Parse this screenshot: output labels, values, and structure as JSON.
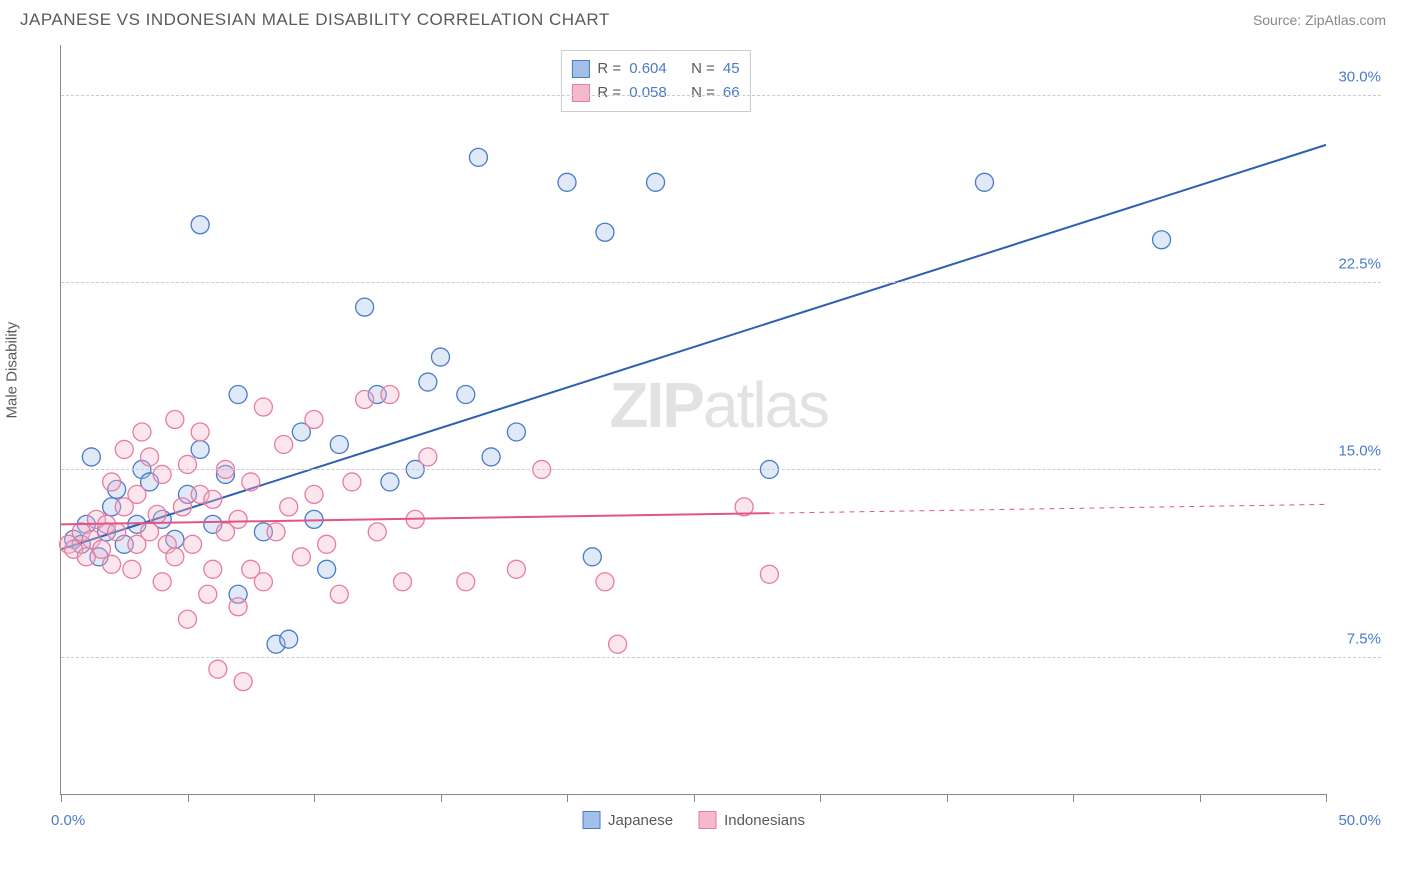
{
  "header": {
    "title": "JAPANESE VS INDONESIAN MALE DISABILITY CORRELATION CHART",
    "source": "Source: ZipAtlas.com"
  },
  "chart": {
    "type": "scatter",
    "y_axis_label": "Male Disability",
    "background_color": "#ffffff",
    "grid_color": "#cccccc",
    "axis_color": "#888888",
    "text_color": "#5a5a5a",
    "value_color": "#4a7bc8",
    "xlim": [
      0,
      50
    ],
    "ylim": [
      2,
      32
    ],
    "x_ticks": [
      0,
      5,
      10,
      15,
      20,
      25,
      30,
      35,
      40,
      45,
      50
    ],
    "x_min_label": "0.0%",
    "x_max_label": "50.0%",
    "y_ticks": [
      7.5,
      15.0,
      22.5,
      30.0
    ],
    "y_tick_labels": [
      "7.5%",
      "15.0%",
      "22.5%",
      "30.0%"
    ],
    "marker_radius": 9,
    "marker_fill_opacity": 0.35,
    "marker_stroke_width": 1.3,
    "line_width": 2,
    "watermark": "ZIPatlas",
    "series": [
      {
        "name": "Japanese",
        "color_stroke": "#4a7bc8",
        "color_fill": "#a3c1e8",
        "line_color": "#2e5fb0",
        "R": "0.604",
        "N": "45",
        "trend": {
          "x1": 0,
          "y1": 11.8,
          "x2": 50,
          "y2": 28.0,
          "solid_until": 50
        },
        "points": [
          [
            0.5,
            12.2
          ],
          [
            0.8,
            12.0
          ],
          [
            1.0,
            12.8
          ],
          [
            1.2,
            15.5
          ],
          [
            1.5,
            11.5
          ],
          [
            1.8,
            12.5
          ],
          [
            2.0,
            13.5
          ],
          [
            2.2,
            14.2
          ],
          [
            2.5,
            12.0
          ],
          [
            3.0,
            12.8
          ],
          [
            3.2,
            15.0
          ],
          [
            3.5,
            14.5
          ],
          [
            4.0,
            13.0
          ],
          [
            4.5,
            12.2
          ],
          [
            5.0,
            14.0
          ],
          [
            5.5,
            15.8
          ],
          [
            5.5,
            24.8
          ],
          [
            6.0,
            12.8
          ],
          [
            6.5,
            14.8
          ],
          [
            7.0,
            18.0
          ],
          [
            7.0,
            10.0
          ],
          [
            8.0,
            12.5
          ],
          [
            8.5,
            8.0
          ],
          [
            9.0,
            8.2
          ],
          [
            9.5,
            16.5
          ],
          [
            10.0,
            13.0
          ],
          [
            10.5,
            11.0
          ],
          [
            11.0,
            16.0
          ],
          [
            12.0,
            21.5
          ],
          [
            12.5,
            18.0
          ],
          [
            13.0,
            14.5
          ],
          [
            14.0,
            15.0
          ],
          [
            14.5,
            18.5
          ],
          [
            15.0,
            19.5
          ],
          [
            16.0,
            18.0
          ],
          [
            16.5,
            27.5
          ],
          [
            17.0,
            15.5
          ],
          [
            18.0,
            16.5
          ],
          [
            20.0,
            26.5
          ],
          [
            21.0,
            11.5
          ],
          [
            21.5,
            24.5
          ],
          [
            23.5,
            26.5
          ],
          [
            28.0,
            15.0
          ],
          [
            36.5,
            26.5
          ],
          [
            43.5,
            24.2
          ]
        ]
      },
      {
        "name": "Indonesians",
        "color_stroke": "#e87ca0",
        "color_fill": "#f5b8cc",
        "line_color": "#e05585",
        "R": "0.058",
        "N": "66",
        "trend": {
          "x1": 0,
          "y1": 12.8,
          "x2": 50,
          "y2": 13.6,
          "solid_until": 28
        },
        "points": [
          [
            0.3,
            12.0
          ],
          [
            0.5,
            11.8
          ],
          [
            0.8,
            12.5
          ],
          [
            1.0,
            11.5
          ],
          [
            1.2,
            12.2
          ],
          [
            1.4,
            13.0
          ],
          [
            1.6,
            11.8
          ],
          [
            1.8,
            12.8
          ],
          [
            2.0,
            11.2
          ],
          [
            2.0,
            14.5
          ],
          [
            2.2,
            12.5
          ],
          [
            2.5,
            13.5
          ],
          [
            2.5,
            15.8
          ],
          [
            2.8,
            11.0
          ],
          [
            3.0,
            12.0
          ],
          [
            3.0,
            14.0
          ],
          [
            3.2,
            16.5
          ],
          [
            3.5,
            12.5
          ],
          [
            3.5,
            15.5
          ],
          [
            3.8,
            13.2
          ],
          [
            4.0,
            10.5
          ],
          [
            4.0,
            14.8
          ],
          [
            4.2,
            12.0
          ],
          [
            4.5,
            11.5
          ],
          [
            4.5,
            17.0
          ],
          [
            4.8,
            13.5
          ],
          [
            5.0,
            9.0
          ],
          [
            5.0,
            15.2
          ],
          [
            5.2,
            12.0
          ],
          [
            5.5,
            14.0
          ],
          [
            5.5,
            16.5
          ],
          [
            5.8,
            10.0
          ],
          [
            6.0,
            11.0
          ],
          [
            6.0,
            13.8
          ],
          [
            6.2,
            7.0
          ],
          [
            6.5,
            12.5
          ],
          [
            6.5,
            15.0
          ],
          [
            7.0,
            9.5
          ],
          [
            7.0,
            13.0
          ],
          [
            7.2,
            6.5
          ],
          [
            7.5,
            11.0
          ],
          [
            7.5,
            14.5
          ],
          [
            8.0,
            10.5
          ],
          [
            8.0,
            17.5
          ],
          [
            8.5,
            12.5
          ],
          [
            8.8,
            16.0
          ],
          [
            9.0,
            13.5
          ],
          [
            9.5,
            11.5
          ],
          [
            10.0,
            14.0
          ],
          [
            10.0,
            17.0
          ],
          [
            10.5,
            12.0
          ],
          [
            11.0,
            10.0
          ],
          [
            11.5,
            14.5
          ],
          [
            12.0,
            17.8
          ],
          [
            12.5,
            12.5
          ],
          [
            13.0,
            18.0
          ],
          [
            13.5,
            10.5
          ],
          [
            14.0,
            13.0
          ],
          [
            14.5,
            15.5
          ],
          [
            16.0,
            10.5
          ],
          [
            18.0,
            11.0
          ],
          [
            19.0,
            15.0
          ],
          [
            21.5,
            10.5
          ],
          [
            22.0,
            8.0
          ],
          [
            27.0,
            13.5
          ],
          [
            28.0,
            10.8
          ]
        ]
      }
    ],
    "legend_bottom": [
      {
        "label": "Japanese",
        "fill": "#a3c1e8",
        "stroke": "#4a7bc8"
      },
      {
        "label": "Indonesians",
        "fill": "#f5b8cc",
        "stroke": "#e87ca0"
      }
    ]
  }
}
